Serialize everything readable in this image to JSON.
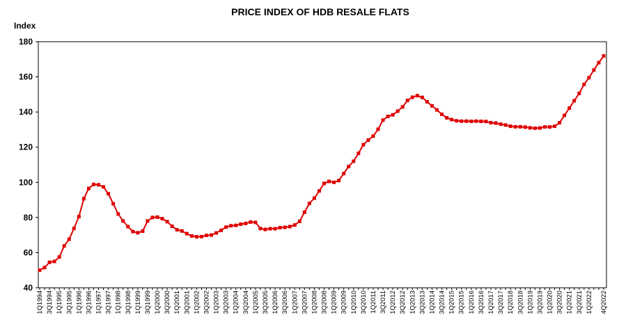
{
  "chart_data": {
    "type": "line",
    "title": "PRICE INDEX OF HDB RESALE FLATS",
    "y_label": "Index",
    "categories": [
      "1Q1994",
      null,
      "3Q1994",
      null,
      "1Q1995",
      null,
      "3Q1995",
      null,
      "1Q1996",
      null,
      "3Q1996",
      null,
      "1Q1997",
      null,
      "3Q1997",
      null,
      "1Q1998",
      null,
      "3Q1998",
      null,
      "1Q1999",
      null,
      "3Q1999",
      null,
      "1Q2000",
      null,
      "3Q2000",
      null,
      "1Q2001",
      null,
      "3Q2001",
      null,
      "1Q2002",
      null,
      "3Q2002",
      null,
      "1Q2003",
      null,
      "3Q2003",
      null,
      "1Q2004",
      null,
      "3Q2004",
      null,
      "1Q2005",
      null,
      "3Q2005",
      null,
      "1Q2006",
      null,
      "3Q2006",
      null,
      "1Q2007",
      null,
      "3Q2007",
      null,
      "1Q2008",
      null,
      "3Q2008",
      null,
      "1Q2009",
      null,
      "3Q2009",
      null,
      "1Q2010",
      null,
      "3Q2010",
      null,
      "1Q2011",
      null,
      "3Q2011",
      null,
      "1Q2012",
      null,
      "3Q2012",
      null,
      "1Q2013",
      null,
      "3Q2013",
      null,
      "1Q2014",
      null,
      "3Q2014",
      null,
      "1Q2015",
      null,
      "3Q2015",
      null,
      "1Q2016",
      null,
      "3Q2016",
      null,
      "1Q2017",
      null,
      "3Q2017",
      null,
      "1Q2018",
      null,
      "3Q2018",
      null,
      "1Q2019",
      null,
      "3Q2019",
      null,
      "1Q2020",
      null,
      "3Q2020",
      null,
      "1Q2021",
      null,
      "3Q2021",
      null,
      "1Q2022",
      null,
      null,
      "4Q2022"
    ],
    "series": [
      {
        "color": "#e00000",
        "values": [
          50.0,
          51.5,
          54.5,
          55.0,
          57.5,
          63.8,
          67.6,
          73.8,
          80.5,
          90.7,
          96.5,
          98.8,
          98.6,
          97.4,
          93.5,
          87.8,
          82.0,
          78.0,
          74.8,
          72.0,
          71.3,
          72.2,
          78.0,
          80.0,
          80.2,
          79.3,
          77.6,
          75.0,
          73.0,
          72.3,
          70.8,
          69.5,
          69.0,
          69.1,
          69.8,
          70.0,
          71.2,
          72.7,
          74.5,
          75.3,
          75.5,
          76.2,
          76.6,
          77.4,
          77.2,
          73.7,
          73.2,
          73.6,
          73.6,
          74.2,
          74.4,
          74.8,
          75.7,
          77.8,
          83.0,
          88.0,
          91.0,
          95.1,
          99.4,
          100.5,
          100.0,
          101.0,
          105.0,
          109.0,
          112.0,
          116.5,
          121.4,
          124.0,
          126.3,
          130.2,
          135.4,
          137.5,
          138.4,
          140.5,
          142.9,
          146.6,
          148.4,
          149.3,
          148.3,
          145.8,
          143.5,
          141.2,
          138.7,
          136.7,
          135.7,
          135.0,
          134.8,
          134.8,
          134.7,
          134.8,
          134.7,
          134.6,
          133.9,
          133.7,
          133.1,
          132.6,
          131.9,
          131.6,
          131.6,
          131.4,
          131.0,
          130.8,
          130.9,
          131.5,
          131.5,
          131.9,
          133.9,
          138.1,
          142.2,
          146.4,
          150.6,
          155.7,
          159.5,
          163.9,
          168.1,
          171.9
        ]
      }
    ],
    "ylim": [
      40,
      180
    ],
    "yticks": [
      40,
      60,
      80,
      100,
      120,
      140,
      160,
      180
    ],
    "grid": false
  }
}
